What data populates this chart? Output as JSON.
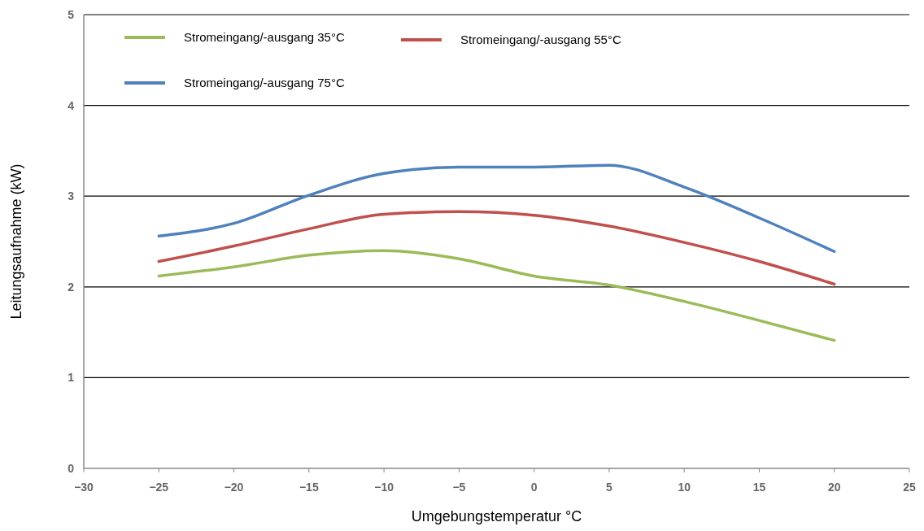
{
  "chart_data": {
    "type": "line",
    "xlabel": "Umgebungstemperatur °C",
    "ylabel": "Leitungsaufnahme (kW)",
    "x": [
      -25,
      -20,
      -15,
      -10,
      -5,
      0,
      5,
      10,
      15,
      20
    ],
    "series": [
      {
        "name": "Stromeingang/-ausgang 35°C",
        "color": "#9bbb59",
        "values": [
          2.12,
          2.22,
          2.35,
          2.4,
          2.31,
          2.12,
          2.02,
          1.84,
          1.63,
          1.41
        ]
      },
      {
        "name": "Stromeingang/-ausgang 55°C",
        "color": "#c0504d",
        "values": [
          2.28,
          2.45,
          2.64,
          2.8,
          2.83,
          2.79,
          2.67,
          2.49,
          2.28,
          2.03
        ]
      },
      {
        "name": "Stromeingang/-ausgang 75°C",
        "color": "#4f81bd",
        "values": [
          2.56,
          2.7,
          3.01,
          3.25,
          3.32,
          3.32,
          3.34,
          3.1,
          2.76,
          2.39
        ]
      }
    ],
    "xlim": [
      -30,
      25
    ],
    "xticks": [
      {
        "value": -30,
        "label": "−30"
      },
      {
        "value": -25,
        "label": "−25"
      },
      {
        "value": -20,
        "label": "−20"
      },
      {
        "value": -15,
        "label": "−15"
      },
      {
        "value": -10,
        "label": "−10"
      },
      {
        "value": -5,
        "label": "−5"
      },
      0,
      5,
      10,
      15,
      20,
      25
    ],
    "ylim": [
      0,
      5
    ],
    "yticks": [
      0,
      1,
      2,
      3,
      4,
      5
    ],
    "grid": "y",
    "legend": "top left",
    "marker": "none",
    "line_style": "solid"
  }
}
